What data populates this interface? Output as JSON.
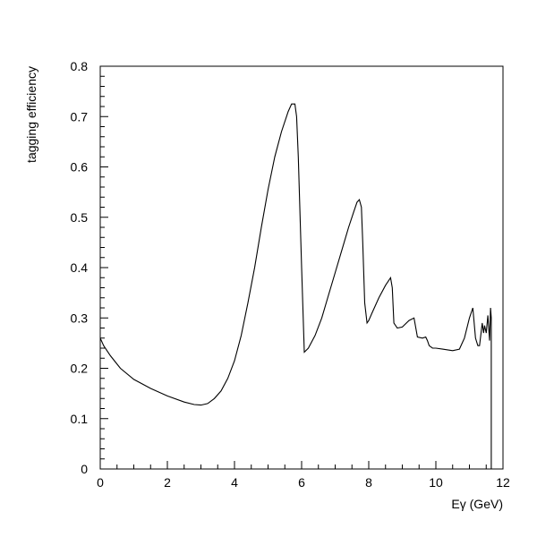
{
  "chart_data": {
    "type": "line",
    "xlabel": "Eγ (GeV)",
    "ylabel": "tagging efficiency",
    "xlim": [
      0,
      12
    ],
    "ylim": [
      0,
      0.8
    ],
    "x_ticks": [
      0,
      2,
      4,
      6,
      8,
      10,
      12
    ],
    "x_tick_labels": [
      "0",
      "2",
      "4",
      "6",
      "8",
      "10",
      "12"
    ],
    "y_ticks": [
      0,
      0.1,
      0.2,
      0.3,
      0.4,
      0.5,
      0.6,
      0.7,
      0.8
    ],
    "y_tick_labels": [
      "0",
      "0.1",
      "0.2",
      "0.3",
      "0.4",
      "0.5",
      "0.6",
      "0.7",
      "0.8"
    ],
    "grid": false,
    "legend": false,
    "series": [
      {
        "x": [
          0.0,
          0.1,
          0.3,
          0.6,
          1.0,
          1.5,
          2.0,
          2.5,
          2.8,
          3.0,
          3.2,
          3.4,
          3.6,
          3.8,
          4.0,
          4.2,
          4.4,
          4.6,
          4.8,
          5.0,
          5.2,
          5.4,
          5.6,
          5.7,
          5.8,
          5.85,
          5.9,
          6.0,
          6.08,
          6.2,
          6.4,
          6.6,
          6.8,
          7.0,
          7.2,
          7.4,
          7.55,
          7.65,
          7.72,
          7.78,
          7.82,
          7.88,
          7.95,
          8.0,
          8.1,
          8.3,
          8.5,
          8.65,
          8.7,
          8.75,
          8.85,
          9.0,
          9.2,
          9.35,
          9.45,
          9.6,
          9.7,
          9.75,
          9.8,
          9.9,
          10.0,
          10.2,
          10.5,
          10.7,
          10.85,
          11.0,
          11.1,
          11.18,
          11.25,
          11.3,
          11.38,
          11.42,
          11.45,
          11.5,
          11.55,
          11.6,
          11.63,
          11.65,
          11.65
        ],
        "y": [
          0.26,
          0.245,
          0.225,
          0.2,
          0.178,
          0.16,
          0.145,
          0.133,
          0.128,
          0.127,
          0.13,
          0.14,
          0.155,
          0.18,
          0.215,
          0.265,
          0.33,
          0.4,
          0.48,
          0.555,
          0.62,
          0.67,
          0.71,
          0.725,
          0.725,
          0.7,
          0.62,
          0.4,
          0.232,
          0.24,
          0.265,
          0.3,
          0.345,
          0.39,
          0.435,
          0.48,
          0.51,
          0.53,
          0.535,
          0.52,
          0.45,
          0.33,
          0.29,
          0.295,
          0.31,
          0.34,
          0.365,
          0.38,
          0.36,
          0.29,
          0.28,
          0.282,
          0.295,
          0.3,
          0.262,
          0.26,
          0.262,
          0.255,
          0.245,
          0.24,
          0.24,
          0.238,
          0.235,
          0.238,
          0.26,
          0.3,
          0.32,
          0.26,
          0.245,
          0.245,
          0.29,
          0.27,
          0.285,
          0.27,
          0.305,
          0.255,
          0.32,
          0.3,
          0.0
        ]
      }
    ]
  }
}
